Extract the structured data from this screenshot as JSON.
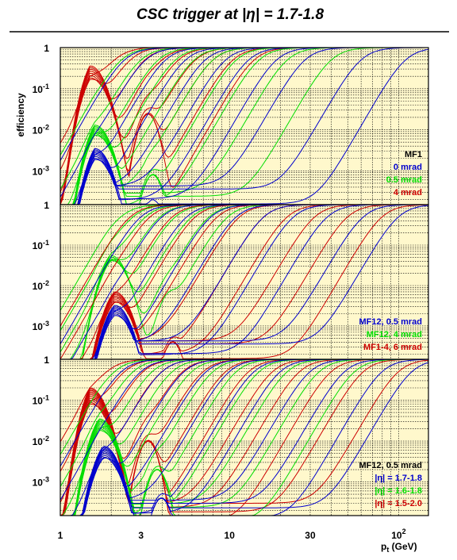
{
  "chart_data": {
    "type": "line",
    "title": "CSC trigger at |η| = 1.7-1.8",
    "xlabel": "p",
    "xlabel_sub": "t",
    "xlabel_unit": " (GeV)",
    "ylabel": "efficiency",
    "xscale": "log",
    "yscale": "log",
    "xlim": [
      1,
      150
    ],
    "ylim": [
      0.00015,
      1
    ],
    "x_ticks": [
      {
        "value": 1,
        "label": "1"
      },
      {
        "value": 3,
        "label": "3"
      },
      {
        "value": 10,
        "label": "10"
      },
      {
        "value": 30,
        "label": "30"
      },
      {
        "value": 100,
        "label": "10",
        "sup": "2"
      }
    ],
    "y_ticks": [
      {
        "value": 1,
        "label": "1"
      },
      {
        "value": 0.1,
        "label": "10",
        "sup": "-1"
      },
      {
        "value": 0.01,
        "label": "10",
        "sup": "-2"
      },
      {
        "value": 0.001,
        "label": "10",
        "sup": "-3"
      }
    ],
    "colors": {
      "blue": "#0000cc",
      "green": "#00dd00",
      "red": "#cc0000",
      "background": "#fff8cc",
      "grid": "#000000"
    },
    "panels": [
      {
        "name": "top",
        "legend": [
          {
            "text": "MF1",
            "color": "#000000"
          },
          {
            "text": "0 mrad",
            "color": "#0000cc"
          },
          {
            "text": "0.5 mrad",
            "color": "#00dd00"
          },
          {
            "text": "4 mrad",
            "color": "#cc0000"
          }
        ],
        "series": [
          {
            "color": "#cc0000",
            "low_bump": 0.12,
            "bump_x": 1.5,
            "floor": 0.0,
            "thresholds": [
              2.1,
              2.6,
              3.2,
              4.0,
              5.0,
              6.3,
              8.0,
              10.5,
              14.0
            ]
          },
          {
            "color": "#00dd00",
            "low_bump": 0.004,
            "bump_x": 1.6,
            "floor": 0.0002,
            "thresholds": [
              2.3,
              3.0,
              3.8,
              4.8,
              6.2,
              8.0,
              11.0,
              15.0,
              22.0,
              40.0
            ]
          },
          {
            "color": "#0000cc",
            "low_bump": 0.001,
            "bump_x": 1.6,
            "floor": 0.0003,
            "thresholds": [
              2.4,
              3.2,
              4.2,
              5.5,
              7.2,
              9.5,
              13.0,
              19.0,
              28.0,
              60.0,
              110.0
            ]
          }
        ]
      },
      {
        "name": "middle",
        "legend": [
          {
            "text": "MF12, 0.5 mrad",
            "color": "#0000cc"
          },
          {
            "text": "MF12, 4 mrad",
            "color": "#00dd00"
          },
          {
            "text": "MF1-4, 6 mrad",
            "color": "#cc0000"
          }
        ],
        "series": [
          {
            "color": "#00dd00",
            "low_bump": 0.02,
            "bump_x": 2.0,
            "floor": 0.0003,
            "thresholds": [
              2.3,
              2.7,
              3.2,
              3.9,
              4.8,
              6.0,
              7.6,
              9.8
            ]
          },
          {
            "color": "#cc0000",
            "low_bump": 0.002,
            "bump_x": 2.1,
            "floor": 0.0003,
            "thresholds": [
              2.6,
              3.4,
              4.6,
              6.3,
              8.5,
              11.5,
              16.0,
              22.0,
              32.0,
              50.0,
              80.0
            ]
          },
          {
            "color": "#0000cc",
            "low_bump": 0.001,
            "bump_x": 2.1,
            "floor": 0.0003,
            "thresholds": [
              3.0,
              4.0,
              5.6,
              7.8,
              11.0,
              16.0,
              24.0,
              38.0,
              62.0,
              100.0
            ]
          }
        ]
      },
      {
        "name": "bottom",
        "legend": [
          {
            "text": "MF12, 0.5 mrad",
            "color": "#000000"
          },
          {
            "text": "|η| = 1.7-1.8",
            "color": "#0000cc"
          },
          {
            "text": "|η| = 1.6-1.8",
            "color": "#00dd00"
          },
          {
            "text": "|η| = 1.5-2.0",
            "color": "#cc0000"
          }
        ],
        "series": [
          {
            "color": "#cc0000",
            "low_bump": 0.05,
            "bump_x": 1.5,
            "floor": 0.0002,
            "thresholds": [
              1.9,
              2.4,
              3.1,
              4.0,
              5.3,
              7.0,
              9.5,
              13.0,
              18.0,
              26.0,
              40.0,
              62.0,
              100.0
            ]
          },
          {
            "color": "#00dd00",
            "low_bump": 0.01,
            "bump_x": 1.7,
            "floor": 0.0002,
            "thresholds": [
              2.1,
              2.7,
              3.5,
              4.6,
              6.0,
              8.0,
              11.0,
              15.0,
              22.0,
              34.0,
              55.0
            ]
          },
          {
            "color": "#0000cc",
            "low_bump": 0.002,
            "bump_x": 1.8,
            "floor": 0.00025,
            "thresholds": [
              2.3,
              3.0,
              4.0,
              5.4,
              7.3,
              10.0,
              14.0,
              20.0,
              30.0,
              48.0,
              80.0,
              120.0
            ]
          }
        ]
      }
    ]
  }
}
